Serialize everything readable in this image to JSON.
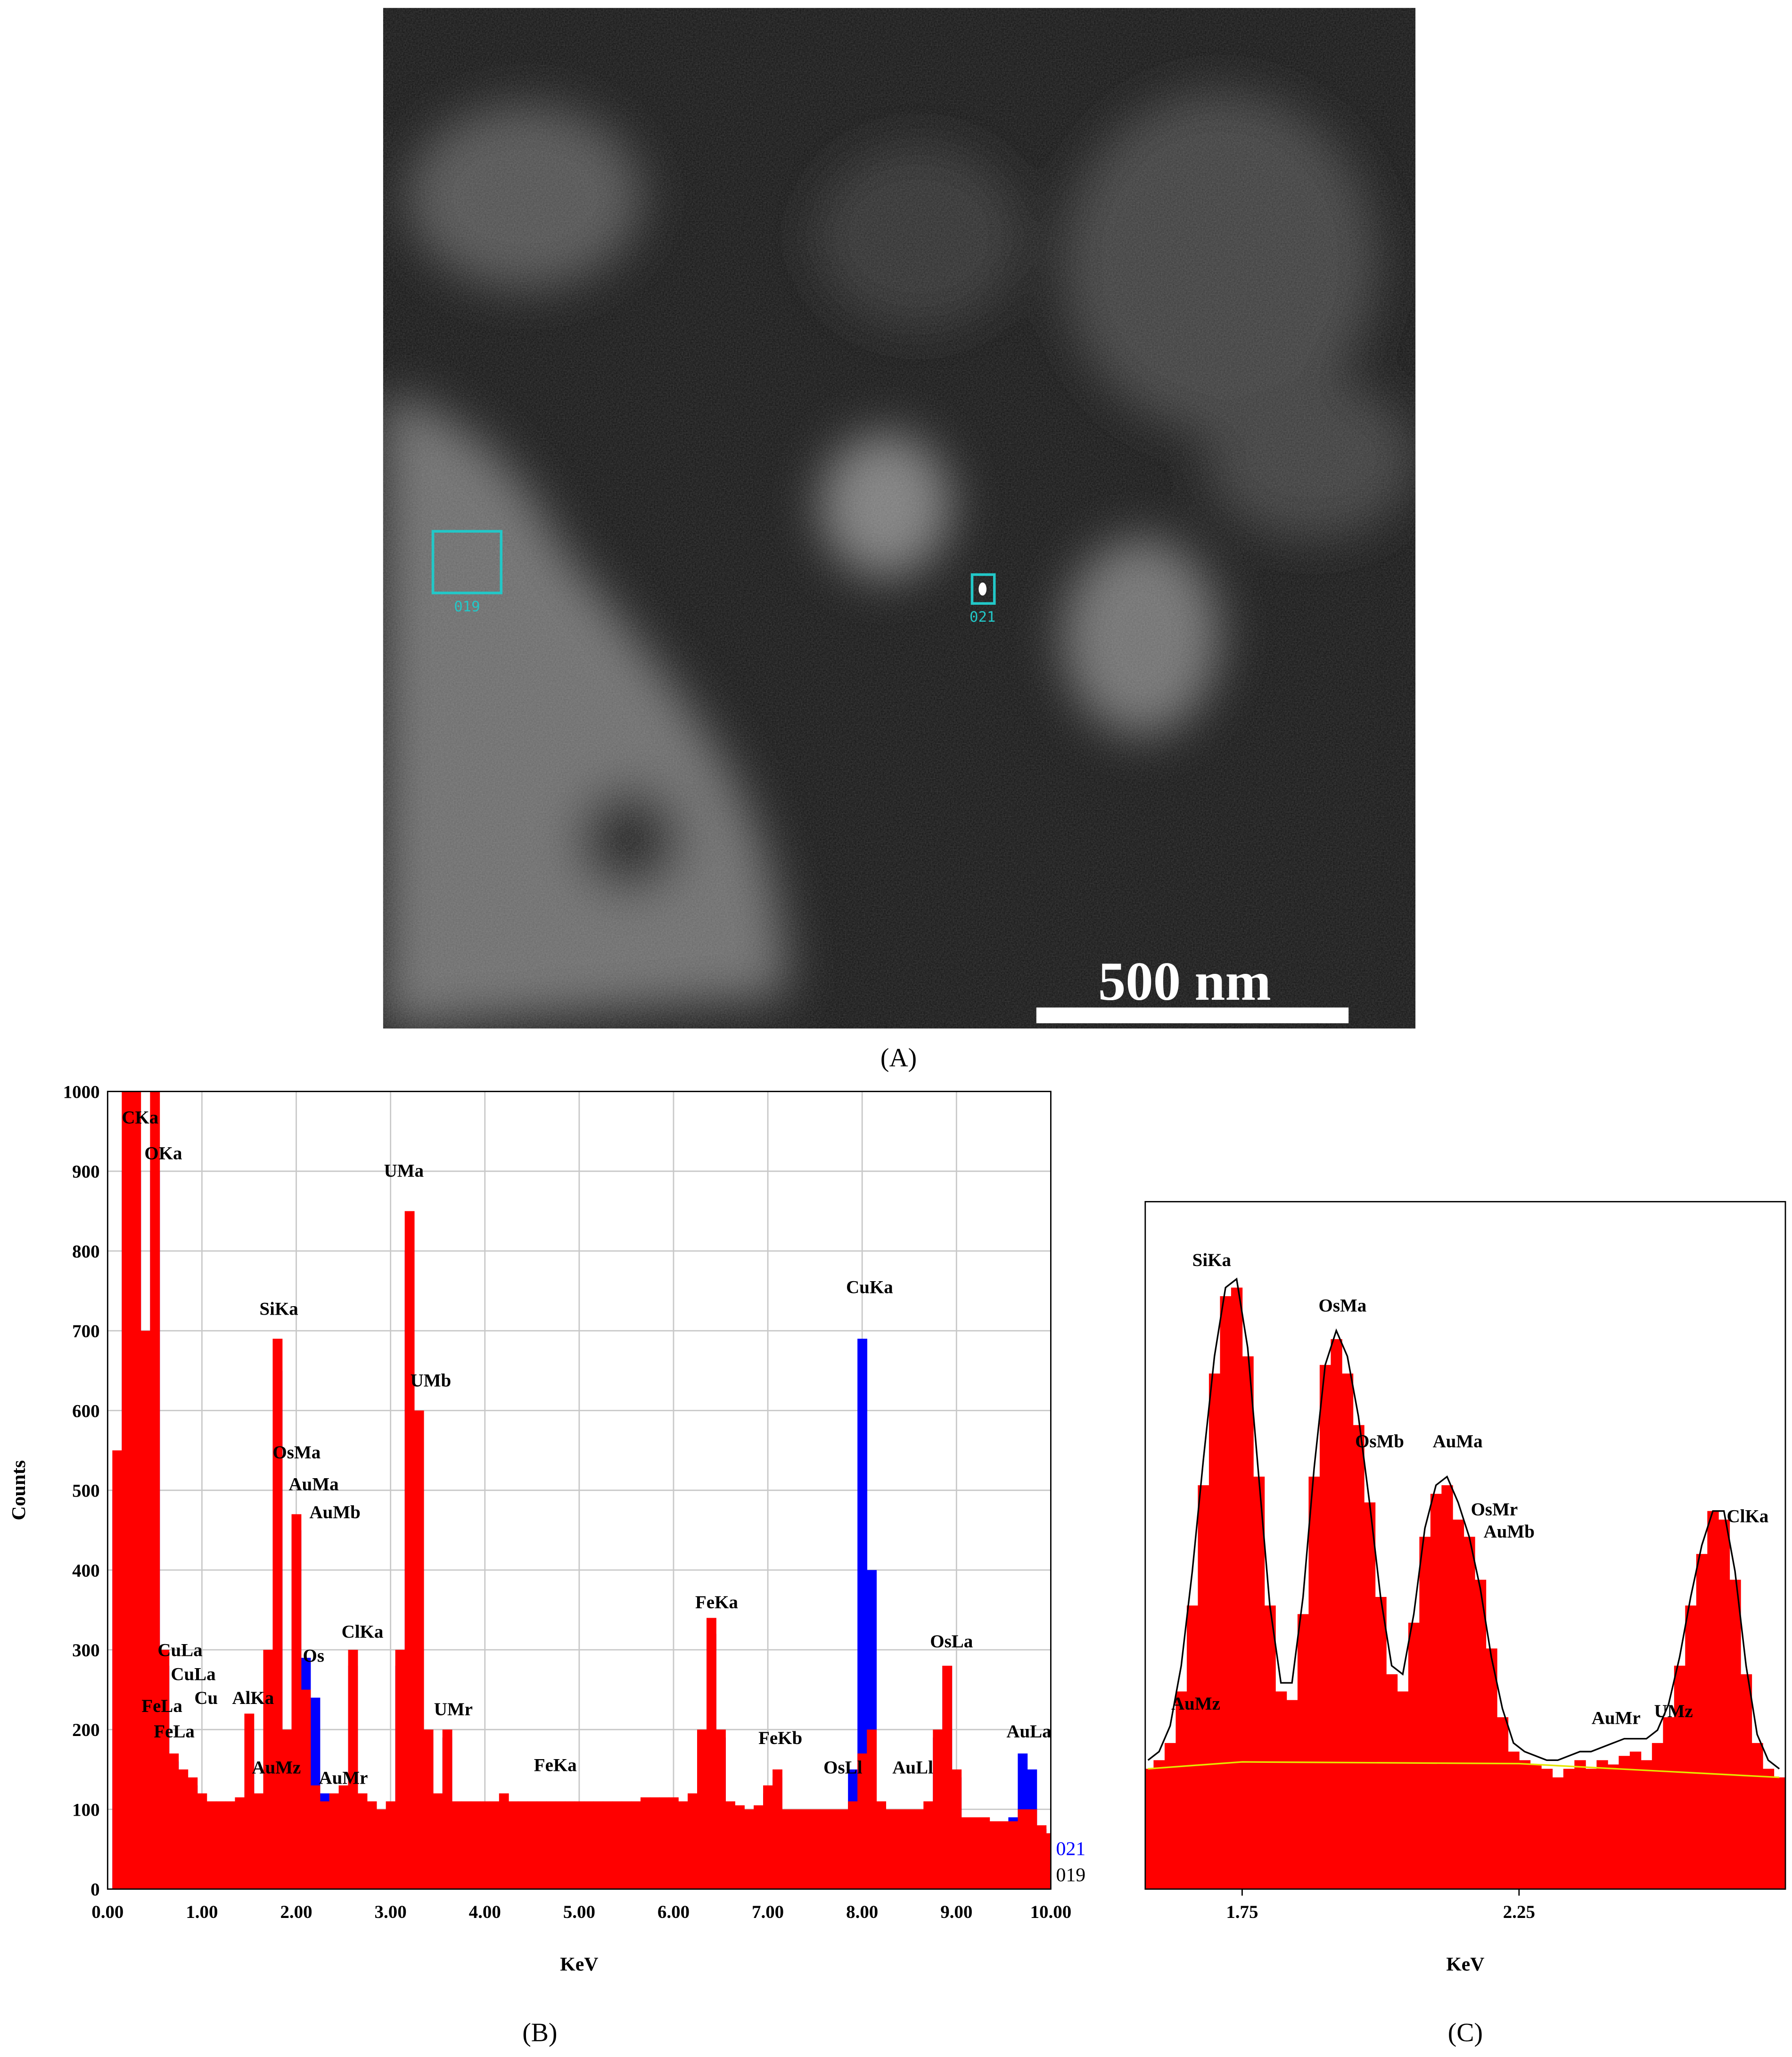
{
  "panel_a": {
    "label": "(A)",
    "regions": [
      {
        "label": "019"
      },
      {
        "label": "021"
      }
    ],
    "scale_bar": "500 nm"
  },
  "chart_data": [
    {
      "type": "bar",
      "panel_label": "(B)",
      "x_label": "KeV",
      "y_label": "Counts",
      "xlim": [
        0,
        10
      ],
      "ylim": [
        0,
        1000
      ],
      "grid": true,
      "legend": "lower right",
      "xticks": [
        {
          "value": 0,
          "label": "0.00"
        },
        {
          "value": 1,
          "label": "1.00"
        },
        {
          "value": 2,
          "label": "2.00"
        },
        {
          "value": 3,
          "label": "3.00"
        },
        {
          "value": 4,
          "label": "4.00"
        },
        {
          "value": 5,
          "label": "5.00"
        },
        {
          "value": 6,
          "label": "6.00"
        },
        {
          "value": 7,
          "label": "7.00"
        },
        {
          "value": 8,
          "label": "8.00"
        },
        {
          "value": 9,
          "label": "9.00"
        },
        {
          "value": 10,
          "label": "10.00"
        }
      ],
      "yticks": [
        0,
        100,
        200,
        300,
        400,
        500,
        600,
        700,
        800,
        900,
        1000
      ],
      "x": [
        0.0,
        0.1,
        0.2,
        0.3,
        0.4,
        0.5,
        0.6,
        0.7,
        0.8,
        0.9,
        1.0,
        1.1,
        1.2,
        1.3,
        1.4,
        1.5,
        1.6,
        1.7,
        1.8,
        1.9,
        2.0,
        2.1,
        2.2,
        2.3,
        2.4,
        2.5,
        2.6,
        2.7,
        2.8,
        2.9,
        3.0,
        3.1,
        3.2,
        3.3,
        3.4,
        3.5,
        3.6,
        3.7,
        3.8,
        3.9,
        4.0,
        4.1,
        4.2,
        4.3,
        4.4,
        4.5,
        4.6,
        4.7,
        4.8,
        4.9,
        5.0,
        5.1,
        5.2,
        5.3,
        5.4,
        5.5,
        5.6,
        5.7,
        5.8,
        5.9,
        6.0,
        6.1,
        6.2,
        6.3,
        6.4,
        6.5,
        6.6,
        6.7,
        6.8,
        6.9,
        7.0,
        7.1,
        7.2,
        7.3,
        7.4,
        7.5,
        7.6,
        7.7,
        7.8,
        7.9,
        8.0,
        8.1,
        8.2,
        8.3,
        8.4,
        8.5,
        8.6,
        8.7,
        8.8,
        8.9,
        9.0,
        9.1,
        9.2,
        9.3,
        9.4,
        9.5,
        9.6,
        9.7,
        9.8,
        9.9,
        10.0
      ],
      "series": [
        {
          "name": "021",
          "color": "#0000ff",
          "legend_color": "#0000ff",
          "values": [
            0,
            500,
            900,
            900,
            650,
            900,
            280,
            160,
            140,
            130,
            110,
            100,
            100,
            100,
            105,
            200,
            110,
            280,
            650,
            190,
            450,
            290,
            240,
            120,
            110,
            120,
            280,
            110,
            100,
            95,
            100,
            280,
            800,
            560,
            190,
            110,
            190,
            100,
            100,
            100,
            100,
            100,
            100,
            100,
            100,
            100,
            100,
            100,
            100,
            100,
            100,
            100,
            100,
            100,
            100,
            100,
            100,
            100,
            100,
            100,
            105,
            100,
            110,
            190,
            320,
            190,
            100,
            95,
            95,
            100,
            120,
            140,
            95,
            95,
            95,
            95,
            95,
            95,
            95,
            150,
            690,
            400,
            100,
            95,
            95,
            95,
            95,
            100,
            190,
            280,
            140,
            85,
            85,
            85,
            80,
            80,
            90,
            170,
            150,
            75,
            65
          ]
        },
        {
          "name": "019",
          "color": "#ff0000",
          "legend_color": "#000000",
          "values": [
            0,
            550,
            1000,
            1000,
            700,
            1000,
            300,
            170,
            150,
            140,
            120,
            110,
            110,
            110,
            115,
            220,
            120,
            300,
            690,
            200,
            470,
            250,
            130,
            110,
            120,
            130,
            300,
            120,
            110,
            100,
            110,
            300,
            850,
            600,
            200,
            120,
            200,
            110,
            110,
            110,
            110,
            110,
            120,
            110,
            110,
            110,
            110,
            110,
            110,
            110,
            110,
            110,
            110,
            110,
            110,
            110,
            110,
            115,
            115,
            115,
            115,
            110,
            120,
            200,
            340,
            200,
            110,
            105,
            100,
            105,
            130,
            150,
            100,
            100,
            100,
            100,
            100,
            100,
            100,
            110,
            170,
            200,
            110,
            100,
            100,
            100,
            100,
            110,
            200,
            280,
            150,
            90,
            90,
            90,
            85,
            85,
            85,
            100,
            100,
            80,
            70
          ]
        }
      ],
      "annotations": [
        {
          "text": "CKa",
          "x": 0.15,
          "y": 960
        },
        {
          "text": "OKa",
          "x": 0.39,
          "y": 915
        },
        {
          "text": "UMa",
          "x": 2.93,
          "y": 893
        },
        {
          "text": "SiKa",
          "x": 1.61,
          "y": 720
        },
        {
          "text": "UMb",
          "x": 3.21,
          "y": 630
        },
        {
          "text": "OsMa",
          "x": 1.75,
          "y": 540
        },
        {
          "text": "AuMa",
          "x": 1.92,
          "y": 500
        },
        {
          "text": "AuMb",
          "x": 2.14,
          "y": 465
        },
        {
          "text": "Os",
          "x": 2.07,
          "y": 285
        },
        {
          "text": "ClKa",
          "x": 2.48,
          "y": 315
        },
        {
          "text": "CuLa",
          "x": 0.53,
          "y": 292
        },
        {
          "text": "CuLa",
          "x": 0.67,
          "y": 262
        },
        {
          "text": "Cu",
          "x": 0.92,
          "y": 232
        },
        {
          "text": "FeLa",
          "x": 0.36,
          "y": 222
        },
        {
          "text": "FeLa",
          "x": 0.49,
          "y": 190
        },
        {
          "text": "AlKa",
          "x": 1.32,
          "y": 232
        },
        {
          "text": "AuMz",
          "x": 1.53,
          "y": 145
        },
        {
          "text": "AuMr",
          "x": 2.24,
          "y": 132
        },
        {
          "text": "UMr",
          "x": 3.46,
          "y": 218
        },
        {
          "text": "FeKa",
          "x": 4.52,
          "y": 148
        },
        {
          "text": "FeKa",
          "x": 6.23,
          "y": 352
        },
        {
          "text": "FeKb",
          "x": 6.9,
          "y": 182
        },
        {
          "text": "OsLl",
          "x": 7.59,
          "y": 145
        },
        {
          "text": "AuLl",
          "x": 8.32,
          "y": 145
        },
        {
          "text": "OsLa",
          "x": 8.72,
          "y": 303
        },
        {
          "text": "AuLa",
          "x": 9.53,
          "y": 190
        },
        {
          "text": "CuKa",
          "x": 7.83,
          "y": 747
        }
      ]
    },
    {
      "type": "bar",
      "panel_label": "(C)",
      "x_label": "KeV",
      "xlim": [
        1.575,
        2.731
      ],
      "ylim": [
        0,
        800
      ],
      "grid": false,
      "xticks": [
        1.75,
        2.25
      ],
      "x": [
        1.58,
        1.6,
        1.62,
        1.64,
        1.66,
        1.68,
        1.7,
        1.72,
        1.74,
        1.76,
        1.78,
        1.8,
        1.82,
        1.84,
        1.86,
        1.88,
        1.9,
        1.92,
        1.94,
        1.96,
        1.98,
        2.0,
        2.02,
        2.04,
        2.06,
        2.08,
        2.1,
        2.12,
        2.14,
        2.16,
        2.18,
        2.2,
        2.22,
        2.24,
        2.26,
        2.28,
        2.3,
        2.32,
        2.34,
        2.36,
        2.38,
        2.4,
        2.42,
        2.44,
        2.46,
        2.48,
        2.5,
        2.52,
        2.54,
        2.56,
        2.58,
        2.6,
        2.62,
        2.64,
        2.66,
        2.68,
        2.7,
        2.72
      ],
      "series": [
        {
          "type": "bar",
          "color": "#ff0000",
          "values": [
            140,
            150,
            170,
            230,
            330,
            470,
            600,
            690,
            700,
            620,
            480,
            330,
            230,
            220,
            320,
            480,
            610,
            640,
            600,
            540,
            450,
            340,
            250,
            230,
            310,
            410,
            460,
            470,
            430,
            410,
            360,
            280,
            200,
            160,
            150,
            145,
            140,
            130,
            140,
            150,
            140,
            150,
            145,
            155,
            160,
            150,
            170,
            200,
            260,
            330,
            390,
            440,
            430,
            360,
            250,
            170,
            140,
            130
          ]
        },
        {
          "type": "line",
          "color": "#000000",
          "values": [
            150,
            160,
            190,
            260,
            370,
            500,
            620,
            700,
            710,
            630,
            480,
            330,
            240,
            240,
            340,
            490,
            610,
            650,
            620,
            550,
            450,
            340,
            260,
            250,
            320,
            420,
            470,
            480,
            450,
            410,
            350,
            270,
            210,
            170,
            160,
            155,
            150,
            150,
            155,
            160,
            160,
            165,
            170,
            175,
            175,
            175,
            185,
            215,
            270,
            340,
            400,
            440,
            440,
            370,
            260,
            180,
            150,
            140
          ]
        },
        {
          "type": "line",
          "color": "#e6e600",
          "x": [
            1.58,
            1.75,
            2.25,
            2.72
          ],
          "values": [
            140,
            148,
            146,
            130
          ]
        }
      ],
      "annotations": [
        {
          "text": "SiKa",
          "x": 1.66,
          "y": 725
        },
        {
          "text": "OsMa",
          "x": 1.888,
          "y": 672
        },
        {
          "text": "OsMb",
          "x": 1.954,
          "y": 514
        },
        {
          "text": "AuMa",
          "x": 2.094,
          "y": 514
        },
        {
          "text": "OsMr",
          "x": 2.163,
          "y": 435
        },
        {
          "text": "AuMb",
          "x": 2.186,
          "y": 409
        },
        {
          "text": "ClKa",
          "x": 2.625,
          "y": 427
        },
        {
          "text": "AuMz",
          "x": 1.622,
          "y": 209
        },
        {
          "text": "AuMr",
          "x": 2.381,
          "y": 192
        },
        {
          "text": "UMz",
          "x": 2.494,
          "y": 200
        }
      ]
    }
  ]
}
